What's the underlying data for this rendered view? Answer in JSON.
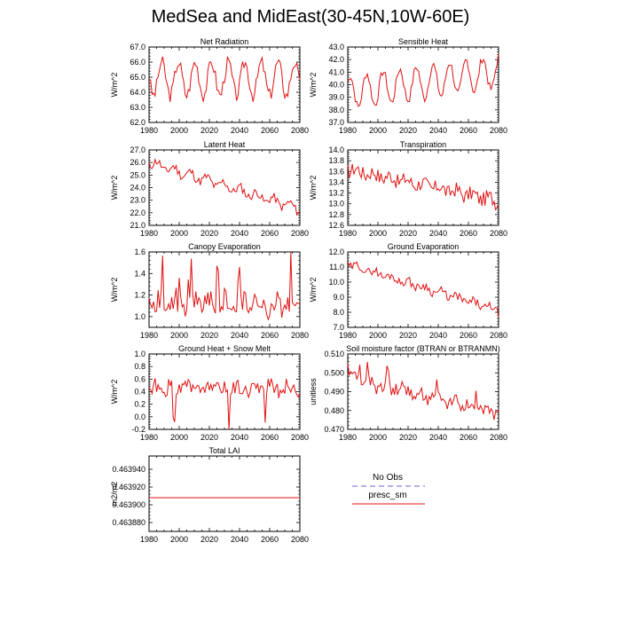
{
  "figure": {
    "title": "MedSea and MidEast(30-45N,10W-60E)"
  },
  "colors": {
    "series_line": "#e01010",
    "obs_line": "#9a9ae0"
  },
  "legend": {
    "obs_label": "No Obs",
    "model_label": "presc_sm"
  },
  "chart_data": [
    {
      "type": "line",
      "title": "Net Radiation",
      "ylabel": "W/m^2",
      "xlim": [
        1980,
        2080
      ],
      "xticks": [
        1980,
        2000,
        2020,
        2040,
        2060,
        2080
      ],
      "ylim": [
        62.0,
        67.0
      ],
      "yticks": [
        "62.0",
        "63.0",
        "64.0",
        "65.0",
        "66.0",
        "67.0"
      ],
      "gen": {
        "base": 64.9,
        "trend": 0.0,
        "amp": 1.1,
        "period": 11,
        "noise": 0.45,
        "seed": 3
      }
    },
    {
      "type": "line",
      "title": "Sensible Heat",
      "ylabel": "W/m^2",
      "xlim": [
        1980,
        2080
      ],
      "xticks": [
        1980,
        2000,
        2020,
        2040,
        2060,
        2080
      ],
      "ylim": [
        37.0,
        43.0
      ],
      "yticks": [
        "37.0",
        "38.0",
        "39.0",
        "40.0",
        "41.0",
        "42.0",
        "43.0"
      ],
      "gen": {
        "base": 39.4,
        "trend": 1.6,
        "amp": 1.3,
        "period": 11,
        "noise": 0.35,
        "seed": 7
      }
    },
    {
      "type": "line",
      "title": "Latent Heat",
      "ylabel": "W/m^2",
      "xlim": [
        1980,
        2080
      ],
      "xticks": [
        1980,
        2000,
        2020,
        2040,
        2060,
        2080
      ],
      "ylim": [
        21.0,
        27.0
      ],
      "yticks": [
        "21.0",
        "22.0",
        "23.0",
        "24.0",
        "25.0",
        "26.0",
        "27.0"
      ],
      "gen": {
        "base": 26.0,
        "trend": -3.7,
        "amp": 0.3,
        "period": 11,
        "noise": 0.35,
        "seed": 11
      }
    },
    {
      "type": "line",
      "title": "Transpiration",
      "ylabel": "W/m^2",
      "xlim": [
        1980,
        2080
      ],
      "xticks": [
        1980,
        2000,
        2020,
        2040,
        2060,
        2080
      ],
      "ylim": [
        12.6,
        14.0
      ],
      "yticks": [
        "12.6",
        "12.8",
        "13.0",
        "13.2",
        "13.4",
        "13.6",
        "13.8",
        "14.0"
      ],
      "gen": {
        "base": 13.65,
        "trend": -0.6,
        "amp": 0.05,
        "period": 11,
        "noise": 0.14,
        "seed": 17
      }
    },
    {
      "type": "line",
      "title": "Canopy Evaporation",
      "ylabel": "W/m^2",
      "xlim": [
        1980,
        2080
      ],
      "xticks": [
        1980,
        2000,
        2020,
        2040,
        2060,
        2080
      ],
      "ylim": [
        0.9,
        1.6
      ],
      "yticks": [
        "1.0",
        "1.2",
        "1.4",
        "1.6"
      ],
      "gen": {
        "base": 1.12,
        "trend": 0.0,
        "amp": 0.05,
        "period": 11,
        "noise": 0.11,
        "spike": 0.38,
        "seed": 23
      }
    },
    {
      "type": "line",
      "title": "Ground Evaporation",
      "ylabel": "W/m^2",
      "xlim": [
        1980,
        2080
      ],
      "xticks": [
        1980,
        2000,
        2020,
        2040,
        2060,
        2080
      ],
      "ylim": [
        7.0,
        12.0
      ],
      "yticks": [
        "7.0",
        "8.0",
        "9.0",
        "10.0",
        "11.0",
        "12.0"
      ],
      "gen": {
        "base": 11.2,
        "trend": -3.1,
        "amp": 0.15,
        "period": 11,
        "noise": 0.28,
        "seed": 29
      }
    },
    {
      "type": "line",
      "title": "Ground Heat + Snow Melt",
      "ylabel": "W/m^2",
      "xlim": [
        1980,
        2080
      ],
      "xticks": [
        1980,
        2000,
        2020,
        2040,
        2060,
        2080
      ],
      "ylim": [
        -0.2,
        1.0
      ],
      "yticks": [
        "-0.2",
        "0.0",
        "0.2",
        "0.4",
        "0.6",
        "0.8",
        "1.0"
      ],
      "gen": {
        "base": 0.45,
        "trend": 0.0,
        "amp": 0.05,
        "period": 11,
        "noise": 0.12,
        "dip": -0.5,
        "seed": 31
      }
    },
    {
      "type": "line",
      "title": "Soil moisture factor (BTRAN or BTRANMN)",
      "ylabel": "unitless",
      "xlim": [
        1980,
        2080
      ],
      "xticks": [
        1980,
        2000,
        2020,
        2040,
        2060,
        2080
      ],
      "ylim": [
        0.47,
        0.51
      ],
      "yticks": [
        "0.470",
        "0.480",
        "0.490",
        "0.500",
        "0.510"
      ],
      "gen": {
        "base": 0.497,
        "trend": -0.018,
        "amp": 0.002,
        "period": 11,
        "noise": 0.0035,
        "spike": 0.009,
        "seed": 37
      }
    },
    {
      "type": "line",
      "title": "Total LAI",
      "ylabel": "m2/m2",
      "xlim": [
        1980,
        2080
      ],
      "xticks": [
        1980,
        2000,
        2020,
        2040,
        2060,
        2080
      ],
      "ylim": [
        0.46387,
        0.463955
      ],
      "yticks": [
        "0.463880",
        "0.463900",
        "0.463920",
        "0.463940"
      ],
      "constant": 0.463908
    }
  ]
}
